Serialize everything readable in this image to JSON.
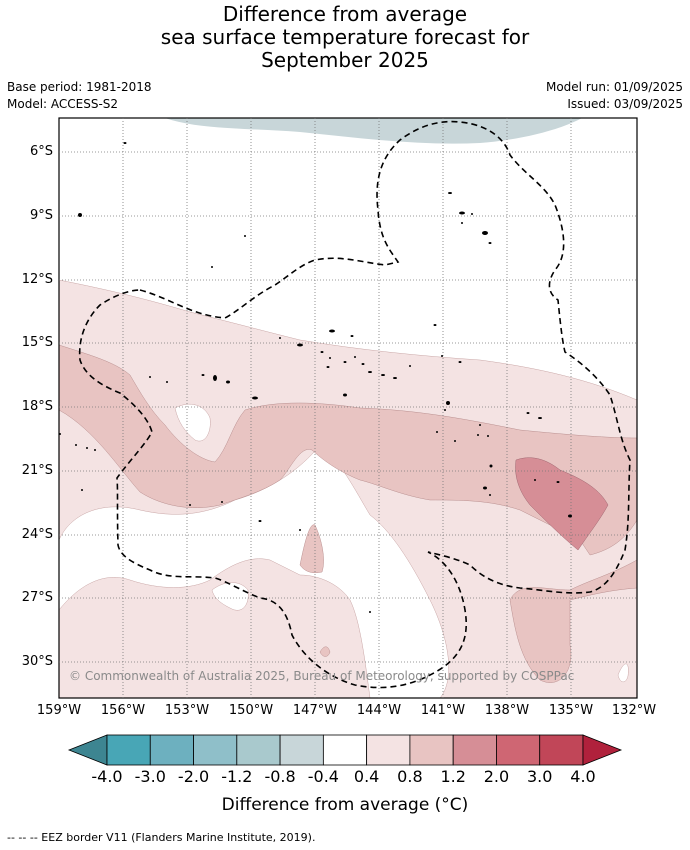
{
  "title_lines": [
    "Difference from average",
    "sea surface temperature forecast for",
    "September 2025"
  ],
  "base_period": "Base period: 1981-2018",
  "model": "Model: ACCESS-S2",
  "model_run": "Model run: 01/09/2025",
  "issued": "Issued: 03/09/2025",
  "copyright": "© Commonwealth of Australia 2025, Bureau of Meteorology, supported by COSPPac",
  "lat_labels": [
    "6°S",
    "9°S",
    "12°S",
    "15°S",
    "18°S",
    "21°S",
    "24°S",
    "27°S",
    "30°S"
  ],
  "lon_labels": [
    "159°W",
    "156°W",
    "153°W",
    "150°W",
    "147°W",
    "144°W",
    "141°W",
    "138°W",
    "135°W",
    "132°W"
  ],
  "colorbar": {
    "ticks": [
      "-4.0",
      "-3.0",
      "-2.0",
      "-1.2",
      "-0.8",
      "-0.4",
      "0.4",
      "0.8",
      "1.2",
      "2.0",
      "3.0",
      "4.0"
    ],
    "under_color": "#3d8591",
    "over_color": "#b0213c",
    "colors": [
      "#48a6b6",
      "#6db0bf",
      "#8fbfc9",
      "#a9c9cd",
      "#c8d6d9",
      "#ffffff",
      "#f4e3e3",
      "#e8c4c2",
      "#d68e96",
      "#cf6673",
      "#c14658"
    ],
    "label": "Difference from average (°C)"
  },
  "legend_note": "--  --  -- EEZ border V11 (Flanders Marine Institute, 2019)."
}
